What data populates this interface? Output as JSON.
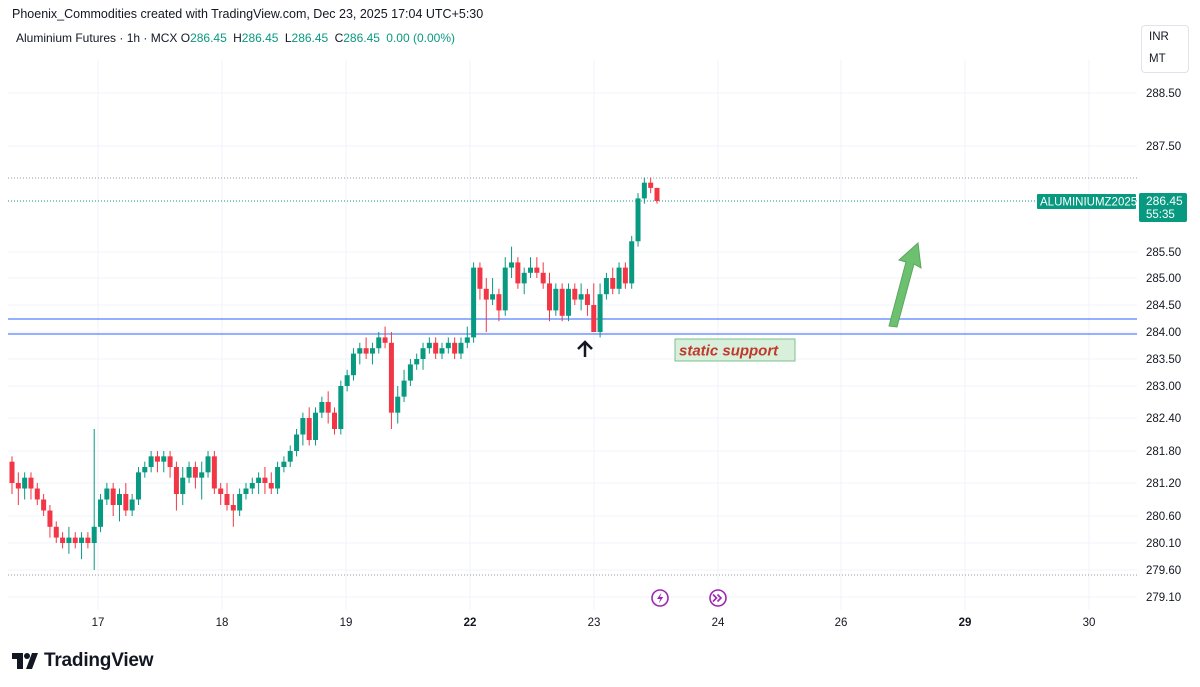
{
  "header": {
    "attribution": "Phoenix_Commodities created with TradingView.com, Dec 23, 2025 17:04 UTC+5:30"
  },
  "symbol": {
    "name": "Aluminium Futures · 1h · MCX",
    "o_label": "O",
    "o_value": "286.45",
    "h_label": "H",
    "h_value": "286.45",
    "l_label": "L",
    "l_value": "286.45",
    "c_label": "C",
    "c_value": "286.45",
    "change": "0.00 (0.00%)"
  },
  "scale_menu": {
    "currency": "INR",
    "unit": "MT"
  },
  "price_tag": {
    "ticker": "ALUMINIUMZ2025",
    "price": "286.45",
    "countdown": "55:35"
  },
  "annotations": {
    "support_label": "static support"
  },
  "footer": {
    "brand": "TradingView"
  },
  "colors": {
    "up": "#089981",
    "down": "#f23645",
    "support_line": "#2962ff",
    "arrow": "#5cb85c",
    "label_text": "#c0392b",
    "label_bg": "#d8efdc"
  },
  "chart_data": {
    "type": "candlestick",
    "title": "Aluminium Futures · 1h · MCX",
    "y_ticks": [
      "288.50",
      "287.50",
      "286.45",
      "285.50",
      "285.00",
      "284.50",
      "284.00",
      "283.50",
      "283.00",
      "282.40",
      "281.80",
      "281.20",
      "280.60",
      "280.10",
      "279.60",
      "279.10"
    ],
    "x_ticks": [
      "17",
      "18",
      "19",
      "22",
      "23",
      "24",
      "26",
      "29",
      "30"
    ],
    "support_levels": [
      284.25,
      284.0
    ],
    "last_price": 286.45,
    "candles": [
      [
        281.6,
        281.7,
        281.0,
        281.2
      ],
      [
        281.2,
        281.4,
        280.8,
        281.1
      ],
      [
        281.1,
        281.4,
        280.9,
        281.3
      ],
      [
        281.3,
        281.4,
        280.9,
        281.1
      ],
      [
        281.1,
        281.2,
        280.8,
        280.9
      ],
      [
        280.9,
        281.0,
        280.6,
        280.7
      ],
      [
        280.7,
        280.8,
        280.2,
        280.4
      ],
      [
        280.4,
        280.5,
        280.1,
        280.2
      ],
      [
        280.2,
        280.3,
        280.0,
        280.1
      ],
      [
        280.1,
        280.4,
        279.9,
        280.2
      ],
      [
        280.2,
        280.3,
        280.0,
        280.1
      ],
      [
        280.1,
        280.3,
        279.8,
        280.2
      ],
      [
        280.2,
        280.3,
        280.0,
        280.1
      ],
      [
        280.1,
        282.2,
        279.6,
        280.4
      ],
      [
        280.4,
        281.0,
        280.3,
        280.9
      ],
      [
        280.9,
        281.2,
        280.8,
        281.1
      ],
      [
        281.1,
        281.2,
        280.6,
        280.8
      ],
      [
        280.8,
        281.1,
        280.5,
        281.0
      ],
      [
        281.0,
        281.2,
        280.6,
        280.7
      ],
      [
        280.7,
        281.0,
        280.6,
        280.9
      ],
      [
        280.9,
        281.5,
        280.8,
        281.4
      ],
      [
        281.4,
        281.6,
        281.3,
        281.5
      ],
      [
        281.5,
        281.8,
        281.4,
        281.7
      ],
      [
        281.7,
        281.8,
        281.4,
        281.6
      ],
      [
        281.6,
        281.8,
        281.4,
        281.7
      ],
      [
        281.7,
        281.8,
        281.3,
        281.5
      ],
      [
        281.5,
        281.6,
        280.7,
        281.0
      ],
      [
        281.0,
        281.5,
        280.8,
        281.3
      ],
      [
        281.3,
        281.6,
        281.2,
        281.5
      ],
      [
        281.5,
        281.6,
        281.1,
        281.3
      ],
      [
        281.3,
        281.6,
        280.9,
        281.4
      ],
      [
        281.4,
        281.8,
        281.3,
        281.7
      ],
      [
        281.7,
        281.8,
        281.0,
        281.1
      ],
      [
        281.1,
        281.2,
        280.8,
        281.0
      ],
      [
        281.0,
        281.2,
        280.7,
        280.8
      ],
      [
        280.8,
        281.0,
        280.4,
        280.7
      ],
      [
        280.7,
        281.1,
        280.6,
        281.0
      ],
      [
        281.0,
        281.2,
        280.9,
        281.1
      ],
      [
        281.1,
        281.3,
        281.0,
        281.2
      ],
      [
        281.2,
        281.4,
        281.0,
        281.3
      ],
      [
        281.3,
        281.5,
        281.0,
        281.2
      ],
      [
        281.2,
        281.4,
        281.0,
        281.1
      ],
      [
        281.1,
        281.6,
        281.0,
        281.5
      ],
      [
        281.5,
        281.7,
        281.4,
        281.6
      ],
      [
        281.6,
        281.9,
        281.5,
        281.8
      ],
      [
        281.8,
        282.2,
        281.7,
        282.1
      ],
      [
        282.1,
        282.5,
        281.9,
        282.4
      ],
      [
        282.4,
        282.6,
        281.9,
        282.0
      ],
      [
        282.0,
        282.6,
        281.9,
        282.5
      ],
      [
        282.5,
        282.8,
        282.4,
        282.7
      ],
      [
        282.7,
        282.9,
        282.3,
        282.5
      ],
      [
        282.5,
        282.6,
        282.1,
        282.2
      ],
      [
        282.2,
        283.1,
        282.1,
        283.0
      ],
      [
        283.0,
        283.3,
        282.9,
        283.2
      ],
      [
        283.2,
        283.7,
        283.1,
        283.6
      ],
      [
        283.6,
        283.8,
        283.4,
        283.7
      ],
      [
        283.7,
        283.9,
        283.5,
        283.6
      ],
      [
        283.6,
        283.8,
        283.4,
        283.7
      ],
      [
        283.7,
        284.0,
        283.6,
        283.9
      ],
      [
        283.9,
        284.1,
        283.7,
        283.8
      ],
      [
        283.8,
        284.0,
        282.2,
        282.5
      ],
      [
        282.5,
        283.0,
        282.3,
        282.8
      ],
      [
        282.8,
        283.3,
        282.7,
        283.1
      ],
      [
        283.1,
        283.5,
        283.0,
        283.4
      ],
      [
        283.4,
        283.6,
        283.3,
        283.5
      ],
      [
        283.5,
        283.8,
        283.3,
        283.7
      ],
      [
        283.7,
        283.9,
        283.6,
        283.8
      ],
      [
        283.8,
        283.9,
        283.5,
        283.6
      ],
      [
        283.6,
        283.8,
        283.5,
        283.7
      ],
      [
        283.7,
        283.9,
        283.6,
        283.8
      ],
      [
        283.8,
        283.9,
        283.5,
        283.6
      ],
      [
        283.6,
        283.9,
        283.5,
        283.8
      ],
      [
        283.8,
        284.1,
        283.7,
        283.9
      ],
      [
        283.9,
        285.3,
        283.8,
        285.2
      ],
      [
        285.2,
        285.3,
        284.6,
        284.8
      ],
      [
        284.8,
        285.0,
        284.0,
        284.6
      ],
      [
        284.6,
        285.0,
        284.5,
        284.7
      ],
      [
        284.7,
        284.8,
        284.2,
        284.4
      ],
      [
        284.4,
        285.4,
        284.3,
        285.2
      ],
      [
        285.2,
        285.6,
        285.0,
        285.3
      ],
      [
        285.3,
        285.4,
        284.8,
        284.9
      ],
      [
        284.9,
        285.2,
        284.7,
        285.1
      ],
      [
        285.1,
        285.4,
        285.0,
        285.2
      ],
      [
        285.2,
        285.4,
        285.0,
        285.1
      ],
      [
        285.1,
        285.3,
        284.8,
        284.9
      ],
      [
        284.9,
        285.1,
        284.2,
        284.4
      ],
      [
        284.4,
        284.9,
        284.3,
        284.8
      ],
      [
        284.8,
        284.9,
        284.2,
        284.3
      ],
      [
        284.3,
        284.9,
        284.2,
        284.8
      ],
      [
        284.8,
        284.9,
        284.5,
        284.6
      ],
      [
        284.6,
        284.9,
        284.4,
        284.7
      ],
      [
        284.7,
        284.8,
        284.3,
        284.5
      ],
      [
        284.5,
        284.9,
        284.0,
        284.0
      ],
      [
        284.0,
        284.9,
        283.9,
        284.7
      ],
      [
        284.7,
        285.1,
        284.6,
        285.0
      ],
      [
        285.0,
        285.2,
        284.7,
        284.8
      ],
      [
        284.8,
        285.3,
        284.7,
        285.2
      ],
      [
        285.2,
        285.3,
        284.8,
        284.9
      ],
      [
        284.9,
        285.8,
        284.8,
        285.7
      ],
      [
        285.7,
        286.6,
        285.6,
        286.5
      ],
      [
        286.5,
        286.9,
        286.4,
        286.8
      ],
      [
        286.8,
        286.9,
        286.6,
        286.7
      ],
      [
        286.7,
        286.7,
        286.4,
        286.45
      ]
    ]
  }
}
